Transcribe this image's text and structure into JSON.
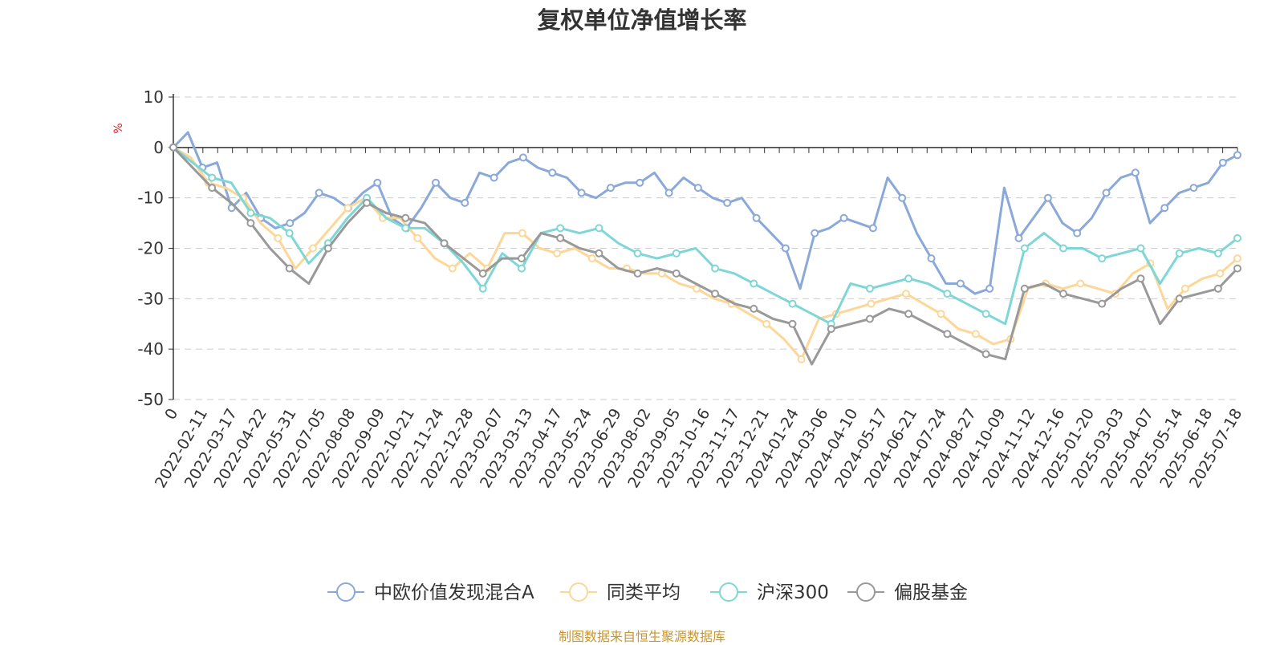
{
  "chart_data": {
    "type": "line",
    "title": "复权单位净值增长率",
    "ylabel": "%",
    "ylim": [
      -50,
      10
    ],
    "yticks": [
      10,
      0,
      -10,
      -20,
      -30,
      -40,
      -50
    ],
    "xlabel": "",
    "x_tick_labels": [
      "0",
      "2022-02-11",
      "2022-03-17",
      "2022-04-22",
      "2022-05-31",
      "2022-07-05",
      "2022-08-08",
      "2022-09-09",
      "2022-10-21",
      "2022-11-24",
      "2022-12-28",
      "2023-02-07",
      "2023-03-13",
      "2023-04-17",
      "2023-05-24",
      "2023-06-29",
      "2023-08-02",
      "2023-09-05",
      "2023-10-16",
      "2023-11-17",
      "2023-12-21",
      "2024-01-24",
      "2024-03-06",
      "2024-04-10",
      "2024-05-17",
      "2024-06-21",
      "2024-07-24",
      "2024-08-27",
      "2024-10-09",
      "2024-11-12",
      "2024-12-16",
      "2025-01-20",
      "2025-03-03",
      "2025-04-07",
      "2025-05-14",
      "2025-06-18",
      "2025-07-18"
    ],
    "grid": true,
    "legend_position": "bottom",
    "series": [
      {
        "name": "中欧价值发现混合A",
        "color": "#8aa8d8",
        "values": [
          0,
          3,
          -4,
          -3,
          -12,
          -9,
          -14,
          -16,
          -15,
          -13,
          -9,
          -10,
          -12,
          -9,
          -7,
          -14,
          -16,
          -12,
          -7,
          -10,
          -11,
          -5,
          -6,
          -3,
          -2,
          -4,
          -5,
          -6,
          -9,
          -10,
          -8,
          -7,
          -7,
          -5,
          -9,
          -6,
          -8,
          -10,
          -11,
          -10,
          -14,
          -17,
          -20,
          -28,
          -17,
          -16,
          -14,
          -15,
          -16,
          -6,
          -10,
          -17,
          -22,
          -27,
          -27,
          -29,
          -28,
          -8,
          -18,
          -14,
          -10,
          -15,
          -17,
          -14,
          -9,
          -6,
          -5,
          -15,
          -12,
          -9,
          -8,
          -7,
          -3,
          -1.5
        ]
      },
      {
        "name": "同类平均",
        "color": "#fcd798",
        "values": [
          0,
          -2,
          -7,
          -8,
          -10,
          -15,
          -18,
          -24,
          -20,
          -16,
          -12,
          -10,
          -14,
          -14,
          -18,
          -22,
          -24,
          -21,
          -24,
          -17,
          -17,
          -20,
          -21,
          -20,
          -22,
          -24,
          -24,
          -25,
          -25,
          -27,
          -28,
          -30,
          -31,
          -33,
          -35,
          -38,
          -42,
          -34,
          -33,
          -32,
          -31,
          -30,
          -29,
          -31,
          -33,
          -36,
          -37,
          -39,
          -38,
          -28,
          -27,
          -28,
          -27,
          -28,
          -29,
          -25,
          -23,
          -32,
          -28,
          -26,
          -25,
          -22
        ]
      },
      {
        "name": "沪深300",
        "color": "#7fd6d6",
        "values": [
          0,
          -3,
          -6,
          -7,
          -13,
          -14,
          -17,
          -23,
          -19,
          -14,
          -10,
          -14,
          -16,
          -16,
          -19,
          -23,
          -28,
          -21,
          -24,
          -17,
          -16,
          -17,
          -16,
          -19,
          -21,
          -22,
          -21,
          -20,
          -24,
          -25,
          -27,
          -29,
          -31,
          -33,
          -35,
          -27,
          -28,
          -27,
          -26,
          -27,
          -29,
          -31,
          -33,
          -35,
          -20,
          -17,
          -20,
          -20,
          -22,
          -21,
          -20,
          -27,
          -21,
          -20,
          -21,
          -18
        ]
      },
      {
        "name": "偏股基金",
        "color": "#999999",
        "values": [
          0,
          -4,
          -8,
          -11,
          -15,
          -20,
          -24,
          -27,
          -20,
          -15,
          -11,
          -13,
          -14,
          -15,
          -19,
          -22,
          -25,
          -22,
          -22,
          -17,
          -18,
          -20,
          -21,
          -24,
          -25,
          -24,
          -25,
          -27,
          -29,
          -31,
          -32,
          -34,
          -35,
          -43,
          -36,
          -35,
          -34,
          -32,
          -33,
          -35,
          -37,
          -39,
          -41,
          -42,
          -28,
          -27,
          -29,
          -30,
          -31,
          -28,
          -26,
          -35,
          -30,
          -29,
          -28,
          -24
        ]
      }
    ]
  },
  "source_note": "制图数据来自恒生聚源数据库"
}
